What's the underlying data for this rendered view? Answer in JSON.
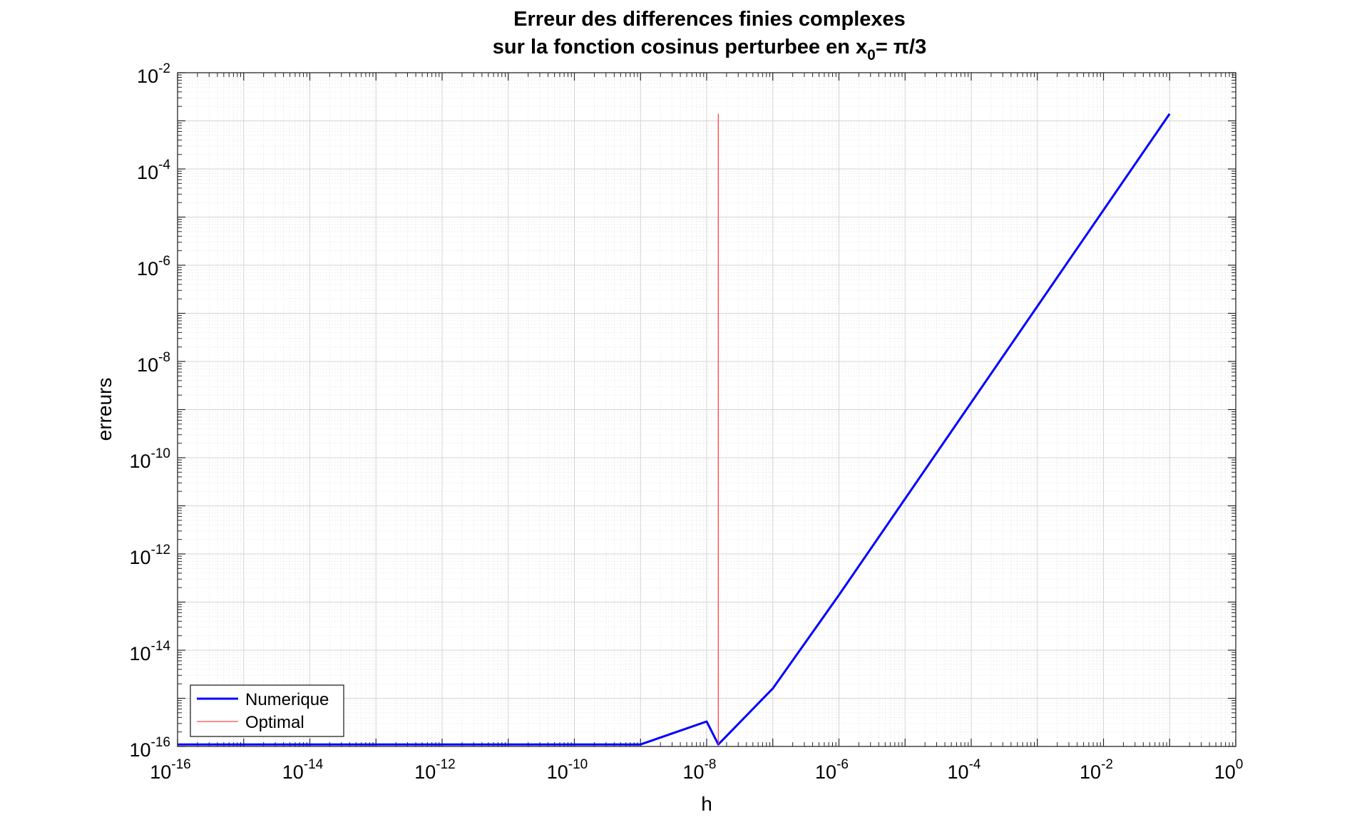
{
  "chart_data": {
    "type": "line",
    "title_line1": "Erreur des differences finies complexes",
    "title_line2_prefix": "sur la fonction cosinus perturbee en x",
    "title_line2_subscript": "0",
    "title_line2_suffix": "= π/3",
    "xlabel": "h",
    "ylabel": "erreurs",
    "xscale": "log",
    "yscale": "log",
    "xlim": [
      1e-16,
      1
    ],
    "ylim": [
      1e-16,
      0.01
    ],
    "grid": true,
    "minor_grid": true,
    "x_ticks": [
      {
        "base": "10",
        "exp": "-16",
        "value": 1e-16
      },
      {
        "base": "10",
        "exp": "-14",
        "value": 1e-14
      },
      {
        "base": "10",
        "exp": "-12",
        "value": 1e-12
      },
      {
        "base": "10",
        "exp": "-10",
        "value": 1e-10
      },
      {
        "base": "10",
        "exp": "-8",
        "value": 1e-08
      },
      {
        "base": "10",
        "exp": "-6",
        "value": 1e-06
      },
      {
        "base": "10",
        "exp": "-4",
        "value": 0.0001
      },
      {
        "base": "10",
        "exp": "-2",
        "value": 0.01
      },
      {
        "base": "10",
        "exp": "0",
        "value": 1
      }
    ],
    "y_ticks": [
      {
        "base": "10",
        "exp": "-16",
        "value": 1e-16
      },
      {
        "base": "10",
        "exp": "-14",
        "value": 1e-14
      },
      {
        "base": "10",
        "exp": "-12",
        "value": 1e-12
      },
      {
        "base": "10",
        "exp": "-10",
        "value": 1e-10
      },
      {
        "base": "10",
        "exp": "-8",
        "value": 1e-08
      },
      {
        "base": "10",
        "exp": "-6",
        "value": 1e-06
      },
      {
        "base": "10",
        "exp": "-4",
        "value": 0.0001
      },
      {
        "base": "10",
        "exp": "-2",
        "value": 0.01
      }
    ],
    "legend_position": "bottom-left",
    "series": [
      {
        "name": "Numerique",
        "color": "#0000ff",
        "points": [
          {
            "x": 1e-16,
            "y": 1.1e-16
          },
          {
            "x": 1e-09,
            "y": 1.1e-16
          },
          {
            "x": 1e-08,
            "y": 3.3e-16
          },
          {
            "x": 1.5e-08,
            "y": 1.1e-16
          },
          {
            "x": 1e-07,
            "y": 1.6e-15
          },
          {
            "x": 1e-06,
            "y": 1.4e-13
          },
          {
            "x": 1e-05,
            "y": 1.4e-11
          },
          {
            "x": 0.0001,
            "y": 1.4e-09
          },
          {
            "x": 0.001,
            "y": 1.4e-07
          },
          {
            "x": 0.01,
            "y": 1.4e-05
          },
          {
            "x": 0.1,
            "y": 0.0014
          }
        ]
      },
      {
        "name": "Optimal",
        "color": "#ff4444",
        "points": [
          {
            "x": 1.5e-08,
            "y": 1.1e-16
          },
          {
            "x": 1.5e-08,
            "y": 0.0014
          }
        ]
      }
    ]
  }
}
